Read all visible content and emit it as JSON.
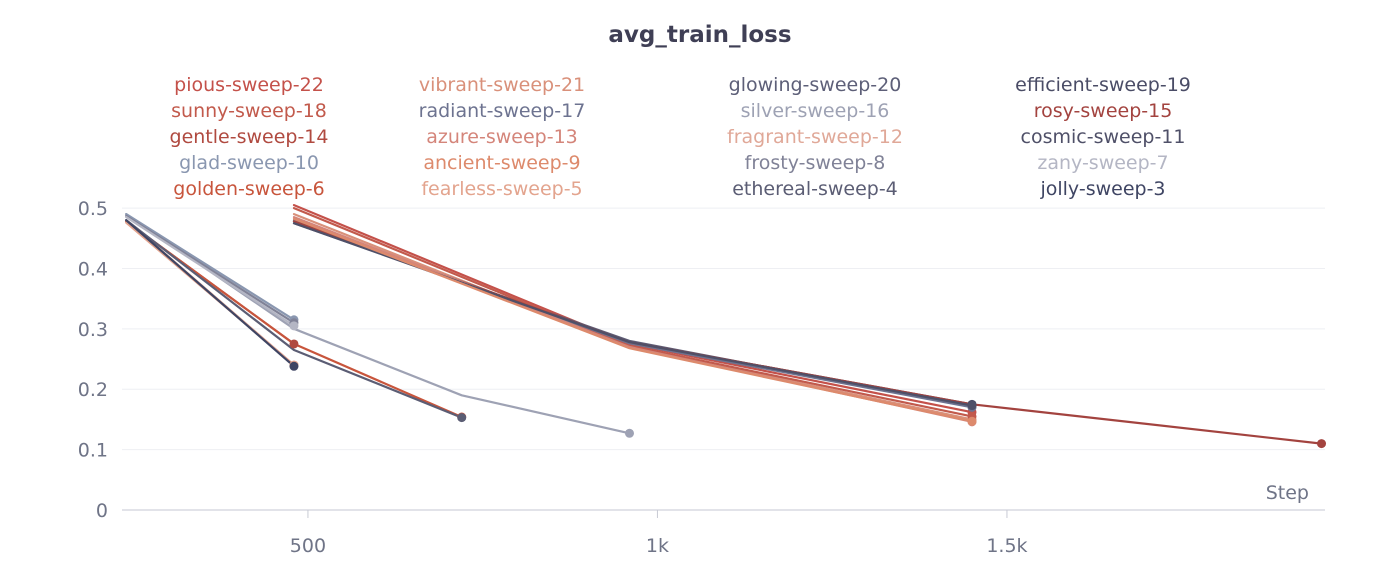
{
  "chart_data": {
    "type": "line",
    "title": "avg_train_loss",
    "xlabel": "Step",
    "ylabel": "",
    "xlim": [
      234,
      1955
    ],
    "ylim": [
      0,
      0.52
    ],
    "x_ticks": [
      500,
      1000,
      1500
    ],
    "x_tick_labels": [
      "500",
      "1k",
      "1.5k"
    ],
    "y_ticks": [
      0,
      0.1,
      0.2,
      0.3,
      0.4,
      0.5
    ],
    "y_tick_labels": [
      "0",
      "0.1",
      "0.2",
      "0.3",
      "0.4",
      "0.5"
    ],
    "grid": true,
    "legend_position": "top",
    "series": [
      {
        "name": "pious-sweep-22",
        "color": "#c4514a",
        "points": [
          [
            480,
            0.505
          ],
          [
            960,
            0.275
          ],
          [
            1450,
            0.162
          ]
        ]
      },
      {
        "name": "vibrant-sweep-21",
        "color": "#d9907a",
        "points": [
          [
            480,
            0.49
          ],
          [
            960,
            0.27
          ],
          [
            1450,
            0.15
          ]
        ]
      },
      {
        "name": "glowing-sweep-20",
        "color": "#5d5f78",
        "points": [
          [
            480,
            0.475
          ],
          [
            960,
            0.28
          ],
          [
            1450,
            0.172
          ]
        ]
      },
      {
        "name": "efficient-sweep-19",
        "color": "#4a4c66",
        "points": [
          [
            480,
            0.478
          ],
          [
            960,
            0.278
          ],
          [
            1450,
            0.175
          ]
        ]
      },
      {
        "name": "sunny-sweep-18",
        "color": "#c25a4c",
        "points": [
          [
            480,
            0.5
          ],
          [
            960,
            0.272
          ],
          [
            1450,
            0.155
          ]
        ]
      },
      {
        "name": "radiant-sweep-17",
        "color": "#6d7390",
        "points": [
          [
            480,
            0.48
          ],
          [
            960,
            0.276
          ],
          [
            1450,
            0.17
          ]
        ]
      },
      {
        "name": "silver-sweep-16",
        "color": "#9ea2b4",
        "points": [
          [
            240,
            0.49
          ],
          [
            480,
            0.3
          ],
          [
            720,
            0.19
          ],
          [
            960,
            0.127
          ]
        ]
      },
      {
        "name": "rosy-sweep-15",
        "color": "#a3433f",
        "points": [
          [
            480,
            0.478
          ],
          [
            960,
            0.278
          ],
          [
            1450,
            0.175
          ],
          [
            1950,
            0.11
          ]
        ]
      },
      {
        "name": "gentle-sweep-14",
        "color": "#b04a40",
        "points": [
          [
            240,
            0.478
          ],
          [
            480,
            0.275
          ]
        ]
      },
      {
        "name": "azure-sweep-13",
        "color": "#d4857a",
        "points": [
          [
            480,
            0.485
          ],
          [
            960,
            0.27
          ],
          [
            1450,
            0.146
          ]
        ]
      },
      {
        "name": "fragrant-sweep-12",
        "color": "#e0a898",
        "points": [
          [
            240,
            0.48
          ],
          [
            480,
            0.24
          ]
        ]
      },
      {
        "name": "cosmic-sweep-11",
        "color": "#4f5068",
        "points": [
          [
            480,
            0.475
          ],
          [
            960,
            0.278
          ],
          [
            1450,
            0.173
          ]
        ]
      },
      {
        "name": "glad-sweep-10",
        "color": "#8a97b0",
        "points": [
          [
            240,
            0.49
          ],
          [
            480,
            0.315
          ]
        ]
      },
      {
        "name": "ancient-sweep-9",
        "color": "#dd8a6c",
        "points": [
          [
            480,
            0.482
          ],
          [
            960,
            0.268
          ],
          [
            1450,
            0.147
          ]
        ]
      },
      {
        "name": "frosty-sweep-8",
        "color": "#808297",
        "points": [
          [
            240,
            0.487
          ],
          [
            480,
            0.31
          ]
        ]
      },
      {
        "name": "zany-sweep-7",
        "color": "#b4b6c4",
        "points": [
          [
            240,
            0.485
          ],
          [
            480,
            0.305
          ]
        ]
      },
      {
        "name": "golden-sweep-6",
        "color": "#c8553c",
        "points": [
          [
            240,
            0.478
          ],
          [
            480,
            0.275
          ],
          [
            720,
            0.154
          ]
        ]
      },
      {
        "name": "fearless-sweep-5",
        "color": "#e3a48e",
        "points": [
          [
            240,
            0.476
          ],
          [
            480,
            0.24
          ]
        ]
      },
      {
        "name": "ethereal-sweep-4",
        "color": "#5b5d74",
        "points": [
          [
            240,
            0.48
          ],
          [
            480,
            0.265
          ],
          [
            720,
            0.153
          ]
        ]
      },
      {
        "name": "jolly-sweep-3",
        "color": "#3f4563",
        "points": [
          [
            240,
            0.48
          ],
          [
            480,
            0.238
          ]
        ]
      }
    ]
  }
}
